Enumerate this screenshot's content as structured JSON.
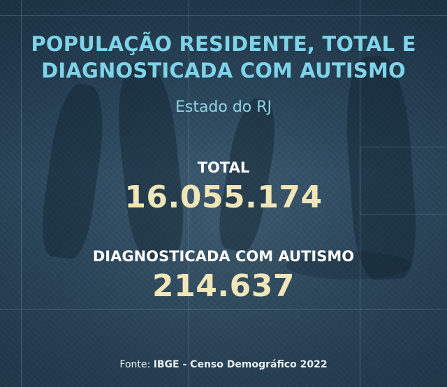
{
  "title": {
    "line1": "POPULAÇÃO RESIDENTE, TOTAL E",
    "line2": "DIAGNOSTICADA COM AUTISMO"
  },
  "subtitle": "Estado do RJ",
  "stats": {
    "total": {
      "label": "TOTAL",
      "value": "16.055.174"
    },
    "autism": {
      "label": "DIAGNOSTICADA COM AUTISMO",
      "value": "214.637"
    }
  },
  "source": {
    "prefix": "Fonte:",
    "name": "IBGE - Censo Demográfico 2022"
  },
  "colors": {
    "title": "#7fd3e9",
    "value": "#f0e6b8",
    "background": "#2f4a5c"
  }
}
